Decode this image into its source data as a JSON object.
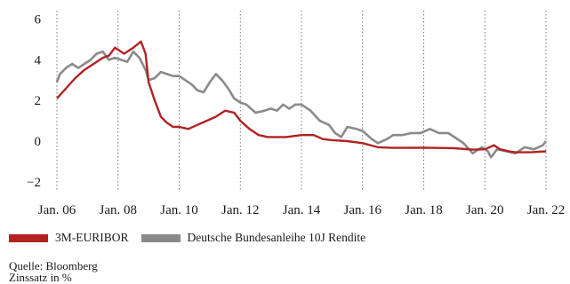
{
  "chart_data": {
    "type": "line",
    "title": "",
    "xlabel": "",
    "ylabel": "",
    "xlim": [
      2006,
      2022
    ],
    "ylim": [
      -2.4,
      6.2
    ],
    "yticks": [
      -2,
      0,
      2,
      4,
      6
    ],
    "ytick_labels": [
      "−2",
      "0",
      "2",
      "4",
      "6"
    ],
    "xticks": [
      2006,
      2008,
      2010,
      2012,
      2014,
      2016,
      2018,
      2020,
      2022
    ],
    "xtick_labels": [
      "Jan. 06",
      "Jan. 08",
      "Jan. 10",
      "Jan. 12",
      "Jan. 14",
      "Jan. 16",
      "Jan. 18",
      "Jan. 20",
      "Jan. 22"
    ],
    "grid": "vertical dotted at x-ticks",
    "legend_position": "bottom-left",
    "series": [
      {
        "name": "Deutsche Bundesanleihe 10J Rendite",
        "color": "#8a8a8a",
        "x": [
          2006.0,
          2006.1,
          2006.3,
          2006.5,
          2006.7,
          2006.9,
          2007.1,
          2007.3,
          2007.5,
          2007.7,
          2007.9,
          2008.1,
          2008.3,
          2008.5,
          2008.7,
          2008.9,
          2009.0,
          2009.2,
          2009.4,
          2009.6,
          2009.8,
          2010.0,
          2010.2,
          2010.4,
          2010.6,
          2010.8,
          2011.0,
          2011.2,
          2011.4,
          2011.6,
          2011.8,
          2012.0,
          2012.2,
          2012.5,
          2012.8,
          2013.0,
          2013.2,
          2013.4,
          2013.6,
          2013.8,
          2014.0,
          2014.3,
          2014.6,
          2014.9,
          2015.1,
          2015.3,
          2015.5,
          2015.8,
          2016.0,
          2016.3,
          2016.5,
          2016.8,
          2017.0,
          2017.3,
          2017.6,
          2017.9,
          2018.2,
          2018.5,
          2018.8,
          2019.0,
          2019.3,
          2019.6,
          2019.9,
          2020.1,
          2020.2,
          2020.4,
          2020.7,
          2021.0,
          2021.3,
          2021.6,
          2021.9,
          2022.0
        ],
        "values": [
          2.9,
          3.3,
          3.6,
          3.8,
          3.6,
          3.8,
          4.0,
          4.3,
          4.4,
          4.0,
          4.1,
          4.0,
          3.9,
          4.4,
          4.1,
          3.5,
          3.0,
          3.1,
          3.4,
          3.3,
          3.2,
          3.2,
          3.0,
          2.8,
          2.5,
          2.4,
          2.9,
          3.3,
          3.0,
          2.6,
          2.1,
          1.9,
          1.8,
          1.4,
          1.5,
          1.6,
          1.5,
          1.8,
          1.6,
          1.8,
          1.8,
          1.5,
          1.0,
          0.8,
          0.4,
          0.2,
          0.7,
          0.6,
          0.5,
          0.1,
          -0.1,
          0.1,
          0.3,
          0.3,
          0.4,
          0.4,
          0.6,
          0.4,
          0.4,
          0.2,
          -0.1,
          -0.6,
          -0.3,
          -0.5,
          -0.8,
          -0.4,
          -0.5,
          -0.6,
          -0.3,
          -0.4,
          -0.2,
          0.0
        ]
      },
      {
        "name": "3M-EURIBOR",
        "color": "#b22222",
        "x": [
          2006.0,
          2006.3,
          2006.6,
          2006.9,
          2007.2,
          2007.5,
          2007.7,
          2007.9,
          2008.2,
          2008.5,
          2008.75,
          2008.9,
          2009.0,
          2009.2,
          2009.4,
          2009.6,
          2009.8,
          2010.0,
          2010.3,
          2010.6,
          2010.9,
          2011.2,
          2011.5,
          2011.8,
          2012.0,
          2012.3,
          2012.6,
          2012.9,
          2013.5,
          2014.0,
          2014.4,
          2014.7,
          2015.0,
          2015.5,
          2016.0,
          2016.5,
          2017.0,
          2018.0,
          2019.0,
          2019.6,
          2020.0,
          2020.3,
          2020.5,
          2020.8,
          2021.0,
          2021.5,
          2022.0
        ],
        "values": [
          2.1,
          2.6,
          3.1,
          3.5,
          3.8,
          4.1,
          4.2,
          4.6,
          4.3,
          4.6,
          4.9,
          4.3,
          2.9,
          2.0,
          1.2,
          0.9,
          0.7,
          0.7,
          0.6,
          0.8,
          1.0,
          1.2,
          1.5,
          1.4,
          1.0,
          0.6,
          0.3,
          0.2,
          0.2,
          0.3,
          0.3,
          0.1,
          0.05,
          0.0,
          -0.1,
          -0.3,
          -0.33,
          -0.32,
          -0.35,
          -0.42,
          -0.4,
          -0.2,
          -0.4,
          -0.5,
          -0.55,
          -0.55,
          -0.5
        ]
      }
    ]
  },
  "legend": {
    "items": [
      {
        "label": "3M-EURIBOR",
        "color": "#b22222"
      },
      {
        "label": "Deutsche Bundesanleihe 10J Rendite",
        "color": "#8a8a8a"
      }
    ]
  },
  "footer": {
    "source": "Quelle: Bloomberg",
    "unit": "Zinssatz in %"
  }
}
